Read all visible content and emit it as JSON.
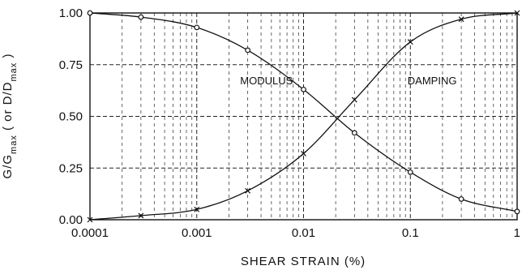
{
  "chart_data": {
    "type": "line",
    "xlabel": "SHEAR STRAIN (%)",
    "ylabel": "G/Gmax ( or D/Dmax )",
    "ylabel_parts": {
      "g": "G/G",
      "gsub": "max",
      "mid": " ( or D/D",
      "dsub": "max",
      "end": " )"
    },
    "xscale": "log",
    "xlim": [
      0.0001,
      1
    ],
    "ylim": [
      0,
      1
    ],
    "xtick_labels": [
      "0.0001",
      "0.001",
      "0.01",
      "0.1",
      "1"
    ],
    "xtick_values": [
      0.0001,
      0.001,
      0.01,
      0.1,
      1
    ],
    "ytick_labels": [
      "0.00",
      "0.25",
      "0.50",
      "0.75",
      "1.00"
    ],
    "ytick_values": [
      0,
      0.25,
      0.5,
      0.75,
      1
    ],
    "grid": true,
    "series": [
      {
        "name": "MODULUS",
        "marker": "circle",
        "x": [
          0.0001,
          0.0003,
          0.001,
          0.003,
          0.01,
          0.03,
          0.1,
          0.3,
          1
        ],
        "values": [
          1.0,
          0.98,
          0.93,
          0.82,
          0.63,
          0.42,
          0.23,
          0.1,
          0.04
        ]
      },
      {
        "name": "DAMPING",
        "marker": "x",
        "x": [
          0.0001,
          0.0003,
          0.001,
          0.003,
          0.01,
          0.03,
          0.1,
          0.3,
          1
        ],
        "values": [
          0.0,
          0.02,
          0.05,
          0.14,
          0.32,
          0.58,
          0.86,
          0.97,
          1.0
        ]
      }
    ],
    "annotations": [
      {
        "text": "MODULUS",
        "x": 0.0045,
        "y": 0.675
      },
      {
        "text": "DAMPING",
        "x": 0.16,
        "y": 0.675
      }
    ],
    "colors": {
      "line": "#111111",
      "grid": "#333333",
      "background": "#ffffff"
    }
  }
}
